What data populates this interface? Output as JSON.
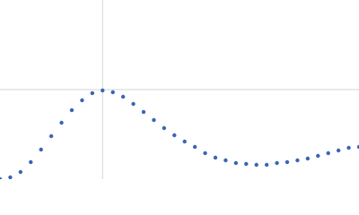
{
  "chart_data": {
    "type": "scatter",
    "x": [
      0,
      0.1,
      0.2,
      0.3,
      0.4,
      0.5,
      0.6,
      0.7,
      0.8,
      0.9,
      1.0,
      1.1,
      1.2,
      1.3,
      1.4,
      1.5,
      1.6,
      1.7,
      1.8,
      1.9,
      2.0,
      2.1,
      2.2,
      2.3,
      2.4,
      2.5,
      2.6,
      2.7,
      2.8,
      2.9,
      3.0,
      3.1,
      3.2,
      3.3,
      3.4,
      3.5
    ],
    "values": [
      0,
      0.02,
      0.08,
      0.19,
      0.33,
      0.48,
      0.63,
      0.77,
      0.88,
      0.96,
      0.99,
      0.97,
      0.92,
      0.84,
      0.75,
      0.66,
      0.57,
      0.49,
      0.42,
      0.36,
      0.29,
      0.24,
      0.21,
      0.18,
      0.17,
      0.16,
      0.16,
      0.18,
      0.19,
      0.21,
      0.23,
      0.26,
      0.29,
      0.32,
      0.35,
      0.36
    ],
    "color": "#3a64b4",
    "xlim": [
      0,
      3.5
    ],
    "ylim": [
      0,
      2
    ],
    "xticks": [
      1
    ],
    "yticks": [
      1
    ],
    "grid": true
  }
}
